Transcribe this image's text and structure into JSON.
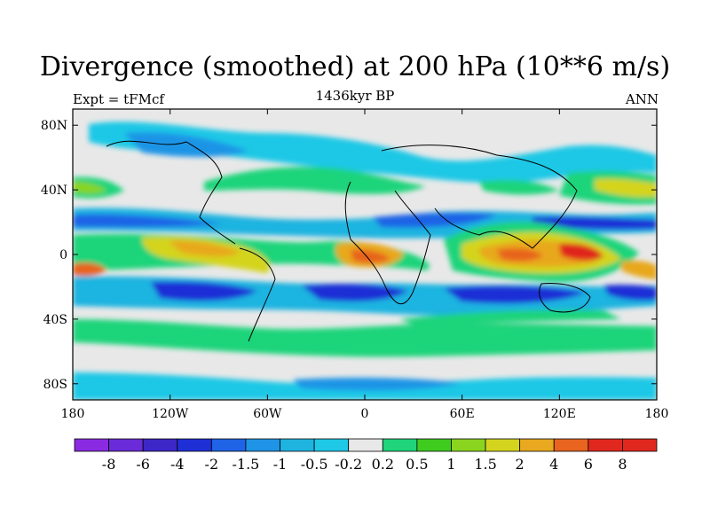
{
  "header": {
    "title": "Divergence (smoothed) at 200 hPa (10**6 m/s)",
    "left": "Expt = tFMcf",
    "center": "1436kyr BP",
    "right": "ANN"
  },
  "axes": {
    "lon_ticks": [
      "180",
      "120W",
      "60W",
      "0",
      "60E",
      "120E",
      "180"
    ],
    "lat_ticks": [
      "80N",
      "40N",
      "0",
      "40S",
      "80S"
    ]
  },
  "colorbar": {
    "colors": [
      "#8a2be2",
      "#6a2bd8",
      "#3d27c8",
      "#1f2fd6",
      "#1f63e6",
      "#1f94e6",
      "#1fb4e0",
      "#1fc8e6",
      "#e8e8e8",
      "#1fd47a",
      "#3fcc1f",
      "#8ad41f",
      "#d4d41f",
      "#e8a81f",
      "#e8641f",
      "#e0281f"
    ],
    "labels": [
      "-8",
      "-6",
      "-4",
      "-2",
      "-1.5",
      "-1",
      "-0.5",
      "-0.2",
      "0.2",
      "0.5",
      "1",
      "1.5",
      "2",
      "4",
      "6",
      "8"
    ]
  }
}
